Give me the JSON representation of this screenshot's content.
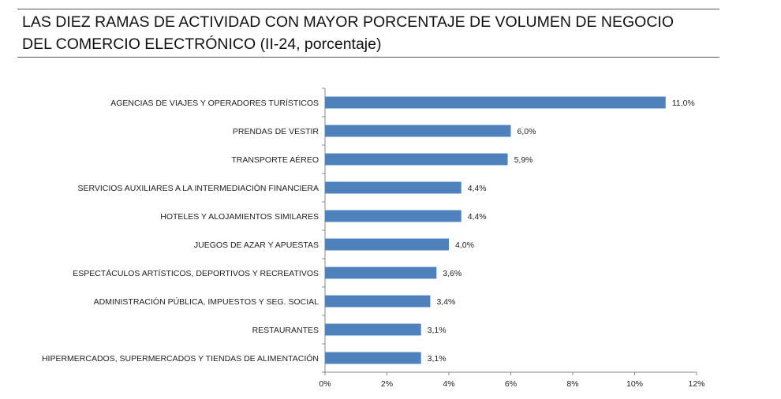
{
  "chart_data": {
    "type": "bar",
    "orientation": "horizontal",
    "title": "LAS DIEZ RAMAS DE ACTIVIDAD CON MAYOR PORCENTAJE DE VOLUMEN DE NEGOCIO DEL COMERCIO ELECTRÓNICO (II-24, porcentaje)",
    "title_lines": [
      "LAS DIEZ RAMAS DE ACTIVIDAD CON MAYOR PORCENTAJE DE VOLUMEN DE NEGOCIO",
      "DEL COMERCIO ELECTRÓNICO (II-24, porcentaje)"
    ],
    "categories": [
      "AGENCIAS DE VIAJES Y OPERADORES TURÍSTICOS",
      "PRENDAS DE VESTIR",
      "TRANSPORTE AÉREO",
      "SERVICIOS AUXILIARES A LA INTERMEDIACIÓN FINANCIERA",
      "HOTELES  Y ALOJAMIENTOS SIMILARES",
      "JUEGOS DE AZAR Y APUESTAS",
      "ESPECTÁCULOS ARTÍSTICOS, DEPORTIVOS Y RECREATIVOS",
      "ADMINISTRACIÓN PÚBLICA, IMPUESTOS Y SEG. SOCIAL",
      "RESTAURANTES",
      "HIPERMERCADOS, SUPERMERCADOS Y TIENDAS DE ALIMENTACIÓN"
    ],
    "values": [
      11.0,
      6.0,
      5.9,
      4.4,
      4.4,
      4.0,
      3.6,
      3.4,
      3.1,
      3.1
    ],
    "value_labels": [
      "11,0%",
      "6,0%",
      "5,9%",
      "4,4%",
      "4,4%",
      "4,0%",
      "3,6%",
      "3,4%",
      "3,1%",
      "3,1%"
    ],
    "xlim": [
      0,
      12
    ],
    "x_ticks": [
      0,
      2,
      4,
      6,
      8,
      10,
      12
    ],
    "x_tick_labels": [
      "0%",
      "2%",
      "4%",
      "6%",
      "8%",
      "10%",
      "12%"
    ],
    "bar_color": "#4f81bd",
    "xlabel": "",
    "ylabel": "",
    "grid": false,
    "legend": "none"
  }
}
